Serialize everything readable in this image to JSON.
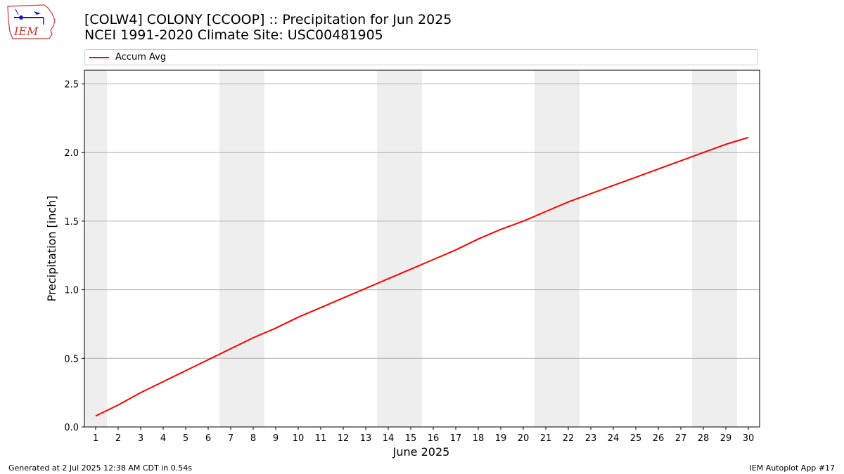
{
  "header": {
    "logo_text": "IEM",
    "title_line1": "[COLW4] COLONY [CCOOP] :: Precipitation for Jun 2025",
    "title_line2": "NCEI 1991-2020 Climate Site: USC00481905"
  },
  "footer": {
    "left": "Generated at 2 Jul 2025 12:38 AM CDT in 0.54s",
    "right": "IEM Autoplot App #17"
  },
  "colors": {
    "series": "#ff0000",
    "weekend_band": "#eeeeee",
    "grid": "#b0b0b0"
  },
  "chart_data": {
    "type": "line",
    "xlabel": "June 2025",
    "ylabel": "Precipitation [inch]",
    "legend_location": "top",
    "grid": true,
    "ylim": [
      0,
      2.6
    ],
    "yticks": [
      0.0,
      0.5,
      1.0,
      1.5,
      2.0,
      2.5
    ],
    "ytick_labels": [
      "0.0",
      "0.5",
      "1.0",
      "1.5",
      "2.0",
      "2.5"
    ],
    "x": [
      1,
      2,
      3,
      4,
      5,
      6,
      7,
      8,
      9,
      10,
      11,
      12,
      13,
      14,
      15,
      16,
      17,
      18,
      19,
      20,
      21,
      22,
      23,
      24,
      25,
      26,
      27,
      28,
      29,
      30
    ],
    "xtick_labels": [
      "1",
      "2",
      "3",
      "4",
      "5",
      "6",
      "7",
      "8",
      "9",
      "10",
      "11",
      "12",
      "13",
      "14",
      "15",
      "16",
      "17",
      "18",
      "19",
      "20",
      "21",
      "22",
      "23",
      "24",
      "25",
      "26",
      "27",
      "28",
      "29",
      "30"
    ],
    "shaded_days": [
      1,
      7,
      8,
      14,
      15,
      21,
      22,
      28,
      29
    ],
    "series": [
      {
        "name": "Accum Avg",
        "values": [
          0.08,
          0.16,
          0.25,
          0.33,
          0.41,
          0.49,
          0.57,
          0.65,
          0.72,
          0.8,
          0.87,
          0.94,
          1.01,
          1.08,
          1.15,
          1.22,
          1.29,
          1.37,
          1.44,
          1.5,
          1.57,
          1.64,
          1.7,
          1.76,
          1.82,
          1.88,
          1.94,
          2.0,
          2.06,
          2.11
        ]
      }
    ]
  }
}
